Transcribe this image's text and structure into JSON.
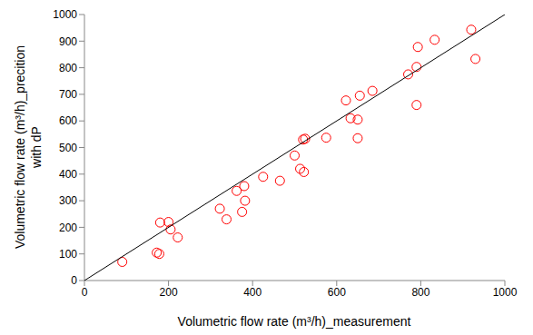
{
  "chart_data": {
    "type": "scatter",
    "x_label": "Volumetric flow rate (m³/h)_measurement",
    "y_label": "Volumetric flow rate (m³/h)_precition\nwith dP",
    "xlim": [
      0,
      1000
    ],
    "ylim": [
      0,
      1000
    ],
    "xticks": [
      0,
      200,
      400,
      600,
      800,
      1000
    ],
    "yticks": [
      0,
      100,
      200,
      300,
      400,
      500,
      600,
      700,
      800,
      900,
      1000
    ],
    "grid": false,
    "series": [
      {
        "type": "scatter",
        "color": "#ff0000",
        "marker": "circle",
        "x": [
          90,
          172,
          178,
          180,
          200,
          205,
          222,
          322,
          338,
          362,
          375,
          380,
          382,
          425,
          465,
          500,
          513,
          520,
          522,
          525,
          575,
          622,
          633,
          650,
          650,
          655,
          685,
          770,
          790,
          790,
          793,
          833,
          920,
          930
        ],
        "values": [
          70,
          105,
          100,
          218,
          220,
          192,
          162,
          270,
          230,
          337,
          258,
          355,
          300,
          390,
          375,
          470,
          420,
          530,
          408,
          533,
          537,
          677,
          610,
          605,
          535,
          695,
          713,
          775,
          660,
          803,
          878,
          905,
          943,
          833
        ]
      },
      {
        "type": "line",
        "color": "#000000",
        "x": [
          0,
          1000
        ],
        "values": [
          0,
          1000
        ]
      }
    ]
  }
}
